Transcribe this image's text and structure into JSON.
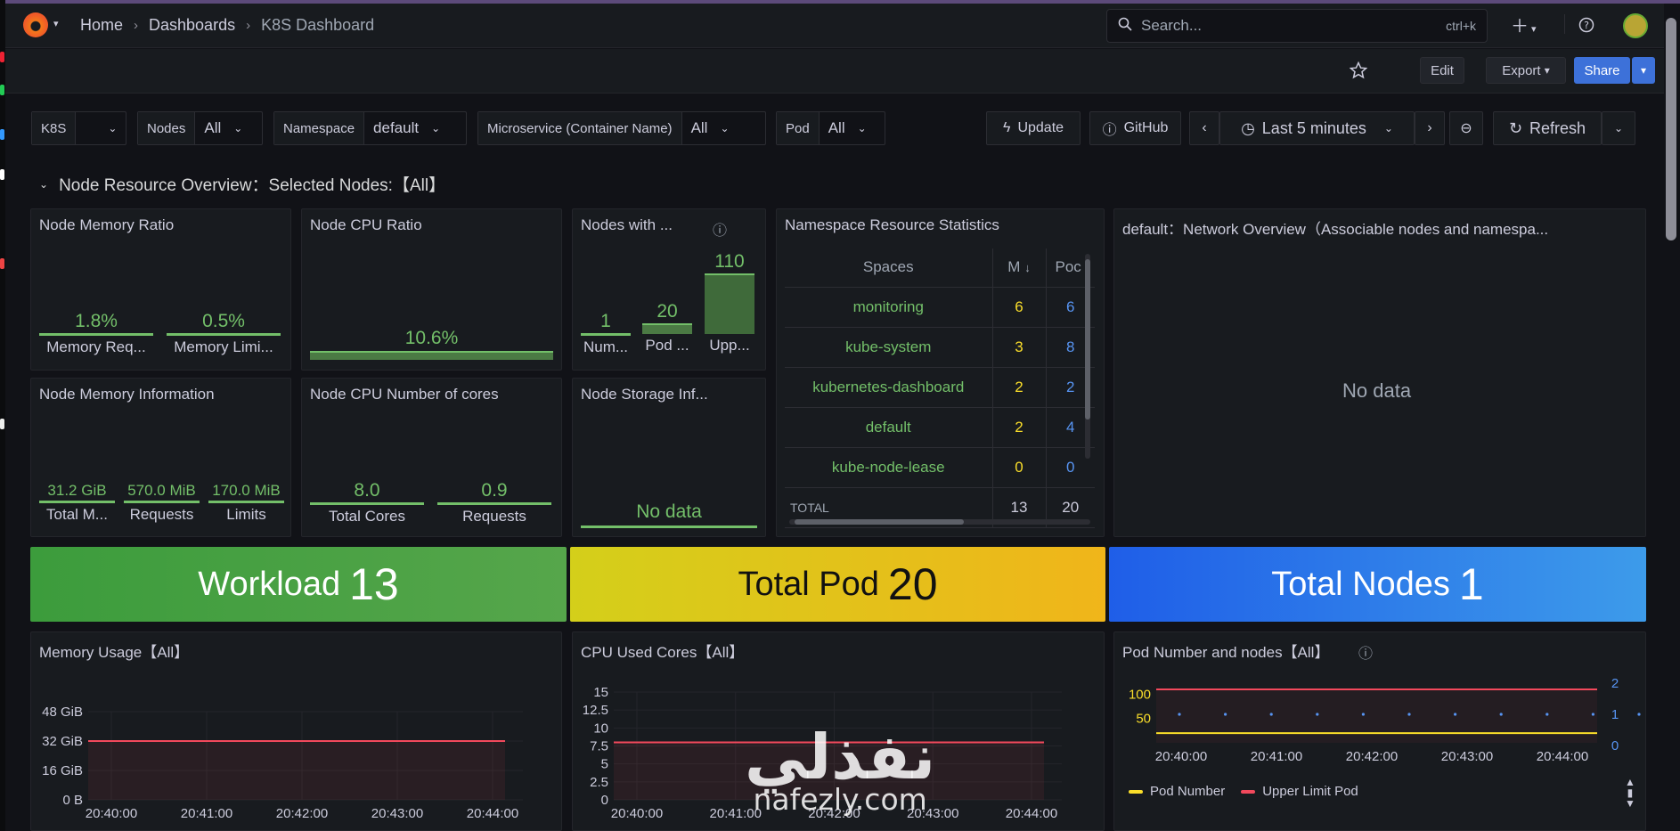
{
  "breadcrumb": {
    "home": "Home",
    "dashboards": "Dashboards",
    "current": "K8S Dashboard"
  },
  "search": {
    "placeholder": "Search...",
    "shortcut": "ctrl+k"
  },
  "toolbar": {
    "edit": "Edit",
    "export": "Export",
    "share": "Share"
  },
  "variables": [
    {
      "label": "K8S",
      "value": ""
    },
    {
      "label": "Nodes",
      "value": "All"
    },
    {
      "label": "Namespace",
      "value": "default"
    },
    {
      "label": "Microservice (Container Name)",
      "value": "All"
    },
    {
      "label": "Pod",
      "value": "All"
    }
  ],
  "actions": {
    "update": "Update",
    "github": "GitHub",
    "time_range": "Last 5 minutes",
    "refresh": "Refresh"
  },
  "section_title": "Node Resource Overview：Selected Nodes:【All】",
  "panels": {
    "mem_ratio": {
      "title": "Node Memory Ratio",
      "stats": [
        {
          "value": "1.8%",
          "label": "Memory Req..."
        },
        {
          "value": "0.5%",
          "label": "Memory Limi..."
        }
      ]
    },
    "cpu_ratio": {
      "title": "Node CPU Ratio",
      "value": "10.6%"
    },
    "nodes_with": {
      "title": "Nodes with ...",
      "stats": [
        {
          "value": "1",
          "label": "Num..."
        },
        {
          "value": "20",
          "label": "Pod ..."
        },
        {
          "value": "110",
          "label": "Upp..."
        }
      ]
    },
    "ns_stats": {
      "title": "Namespace Resource Statistics",
      "headers": [
        "Spaces",
        "M",
        "Poc"
      ],
      "rows": [
        {
          "space": "monitoring",
          "m": "6",
          "p": "6"
        },
        {
          "space": "kube-system",
          "m": "3",
          "p": "8"
        },
        {
          "space": "kubernetes-dashboard",
          "m": "2",
          "p": "2"
        },
        {
          "space": "default",
          "m": "2",
          "p": "4"
        },
        {
          "space": "kube-node-lease",
          "m": "0",
          "p": "0"
        }
      ],
      "total": {
        "label": "TOTAL",
        "m": "13",
        "p": "20"
      }
    },
    "network": {
      "title": "default：Network Overview（Associable nodes and namespa...",
      "nodata": "No data"
    },
    "mem_info": {
      "title": "Node Memory Information",
      "stats": [
        {
          "value": "31.2 GiB",
          "label": "Total M..."
        },
        {
          "value": "570.0 MiB",
          "label": "Requests"
        },
        {
          "value": "170.0 MiB",
          "label": "Limits"
        }
      ]
    },
    "cpu_cores": {
      "title": "Node CPU Number of cores",
      "stats": [
        {
          "value": "8.0",
          "label": "Total Cores"
        },
        {
          "value": "0.9",
          "label": "Requests"
        }
      ]
    },
    "storage": {
      "title": "Node Storage Inf...",
      "nodata": "No data"
    }
  },
  "big_stats": {
    "workload": {
      "label": "Workload",
      "value": "13",
      "color": "#56a64b"
    },
    "pods": {
      "label": "Total Pod",
      "value": "20",
      "color": "#e0c414"
    },
    "nodes": {
      "label": "Total Nodes",
      "value": "1",
      "color": "#3274d9"
    }
  },
  "charts": {
    "memory": {
      "title": "Memory Usage【All】",
      "y_ticks": [
        "48 GiB",
        "32 GiB",
        "16 GiB",
        "0 B"
      ],
      "x_ticks": [
        "20:40:00",
        "20:41:00",
        "20:42:00",
        "20:43:00",
        "20:44:00"
      ]
    },
    "cpu": {
      "title": "CPU Used Cores【All】",
      "y_ticks": [
        "15",
        "12.5",
        "10",
        "7.5",
        "5",
        "2.5",
        "0"
      ],
      "x_ticks": [
        "20:40:00",
        "20:41:00",
        "20:42:00",
        "20:43:00",
        "20:44:00"
      ]
    },
    "pods": {
      "title": "Pod Number and nodes【All】",
      "y_ticks_left": [
        "100",
        "50"
      ],
      "y_ticks_right": [
        "2",
        "1",
        "0"
      ],
      "x_ticks": [
        "20:40:00",
        "20:41:00",
        "20:42:00",
        "20:43:00",
        "20:44:00"
      ],
      "legend": [
        {
          "name": "Pod Number",
          "color": "#fade2a"
        },
        {
          "name": "Upper Limit Pod",
          "color": "#f2495c"
        }
      ]
    }
  },
  "chart_data": [
    {
      "type": "line",
      "title": "Memory Usage【All】",
      "ylabel": "",
      "ylim": [
        0,
        48
      ],
      "unit": "GiB",
      "x": [
        "20:40:00",
        "20:41:00",
        "20:42:00",
        "20:43:00",
        "20:44:00"
      ],
      "series": [
        {
          "values": [
            32,
            32,
            32,
            32,
            32
          ]
        }
      ]
    },
    {
      "type": "line",
      "title": "CPU Used Cores【All】",
      "ylim": [
        0,
        15
      ],
      "x": [
        "20:40:00",
        "20:41:00",
        "20:42:00",
        "20:43:00",
        "20:44:00"
      ],
      "series": [
        {
          "values": [
            8,
            8,
            8,
            8,
            8
          ]
        }
      ]
    },
    {
      "type": "line",
      "title": "Pod Number and nodes【All】",
      "ylim": [
        0,
        110
      ],
      "x": [
        "20:40:00",
        "20:41:00",
        "20:42:00",
        "20:43:00",
        "20:44:00"
      ],
      "series": [
        {
          "name": "Pod Number",
          "values": [
            20,
            20,
            20,
            20,
            20
          ]
        },
        {
          "name": "Upper Limit Pod",
          "values": [
            110,
            110,
            110,
            110,
            110
          ]
        }
      ]
    }
  ],
  "watermark": {
    "arabic": "نفذلي",
    "latin": "nafezly.com"
  }
}
